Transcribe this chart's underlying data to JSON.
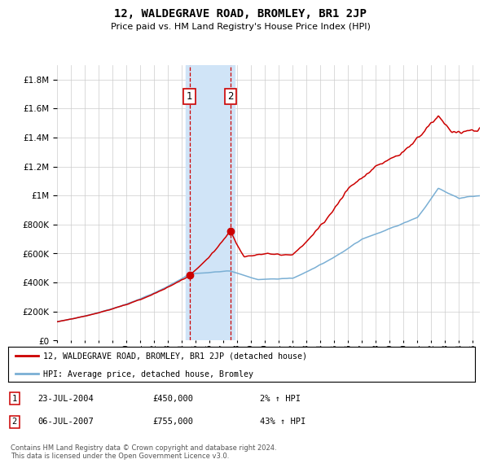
{
  "title": "12, WALDEGRAVE ROAD, BROMLEY, BR1 2JP",
  "subtitle": "Price paid vs. HM Land Registry's House Price Index (HPI)",
  "ytick_values": [
    0,
    200000,
    400000,
    600000,
    800000,
    1000000,
    1200000,
    1400000,
    1600000,
    1800000
  ],
  "ylim": [
    0,
    1900000
  ],
  "xlim_start": 1995.0,
  "xlim_end": 2025.5,
  "purchase1_x": 2004.55,
  "purchase1_y": 450000,
  "purchase2_x": 2007.5,
  "purchase2_y": 755000,
  "shade_x1": 2004.3,
  "shade_x2": 2007.8,
  "shade_color": "#d0e4f7",
  "hpi_line_color": "#7aafd4",
  "price_line_color": "#cc0000",
  "legend_label_price": "12, WALDEGRAVE ROAD, BROMLEY, BR1 2JP (detached house)",
  "legend_label_hpi": "HPI: Average price, detached house, Bromley",
  "transaction1_date": "23-JUL-2004",
  "transaction1_price": "£450,000",
  "transaction1_hpi": "2% ↑ HPI",
  "transaction2_date": "06-JUL-2007",
  "transaction2_price": "£755,000",
  "transaction2_hpi": "43% ↑ HPI",
  "footer": "Contains HM Land Registry data © Crown copyright and database right 2024.\nThis data is licensed under the Open Government Licence v3.0.",
  "background_color": "#ffffff",
  "grid_color": "#cccccc"
}
